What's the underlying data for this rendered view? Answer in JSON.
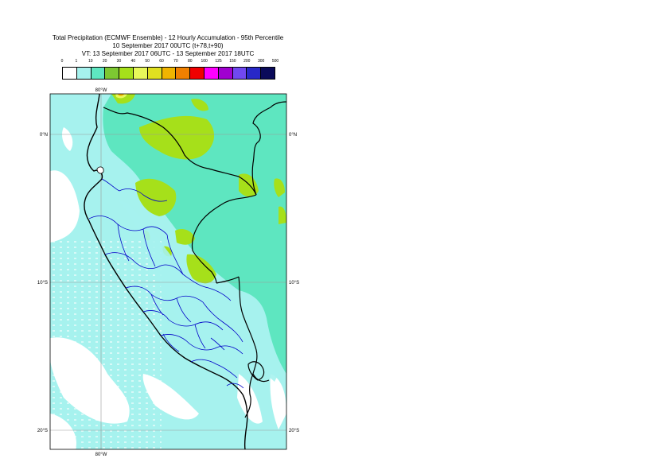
{
  "title": {
    "line1": "Total Precipitation (ECMWF Ensemble) - 12 Hourly Accumulation - 95th Percentile",
    "line2": "10 September 2017 00UTC (t+78,t+90)",
    "line3": "VT: 13 September 2017 06UTC - 13 September 2017 18UTC"
  },
  "legend": {
    "labels": [
      "0",
      "1",
      "10",
      "20",
      "30",
      "40",
      "50",
      "60",
      "70",
      "80",
      "100",
      "125",
      "150",
      "200",
      "300",
      "500"
    ],
    "colors": [
      "#ffffff",
      "#a6f2ee",
      "#5ee6c0",
      "#7dc832",
      "#a6e01a",
      "#e8f85a",
      "#e0e020",
      "#f0b400",
      "#f08000",
      "#f00000",
      "#ff00ff",
      "#a000d0",
      "#7048f0",
      "#2828c8",
      "#0a0a5a"
    ]
  },
  "axes": {
    "lon_top": "80°W",
    "lon_bottom": "80°W",
    "lat_left": [
      "0°N",
      "10°S",
      "20°S"
    ],
    "lat_right": [
      "0°N",
      "10°S",
      "20°S"
    ]
  },
  "map": {
    "ocean_color": "#a6f2ee",
    "land_color": "#5ee6c0",
    "heavy_color": "#a6e01a",
    "border_color": "#000000",
    "province_color": "#0000c8"
  }
}
